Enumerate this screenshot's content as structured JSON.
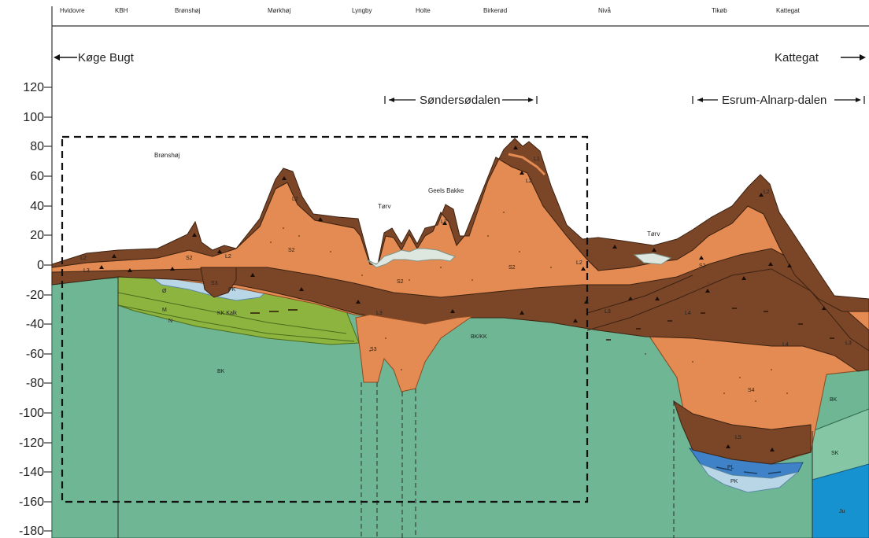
{
  "places": [
    "Hvidovre",
    "KBH",
    "Brønshøj",
    "Mørkhøj",
    "Lyngby",
    "Holte",
    "Birkerød",
    "Nivå",
    "Tikøb",
    "Kattegat"
  ],
  "direction_left": "Køge Bugt",
  "direction_right": "Kattegat",
  "valley_1": "Søndersødalen",
  "valley_2": "Esrum-Alnarp-dalen",
  "y_ticks": [
    "120",
    "100",
    "80",
    "60",
    "40",
    "20",
    "0",
    "-20",
    "-40",
    "-60",
    "-80",
    "-100",
    "-120",
    "-140",
    "-160",
    "-180"
  ],
  "annotations": {
    "bronshoj": "Brønshøj",
    "torv_1": "Tørv",
    "torv_2": "Tørv",
    "geels_bakke": "Geels Bakke"
  },
  "units": {
    "l2_a": "L2",
    "l3_a": "L3",
    "s2_a": "S2",
    "l2_b": "L2",
    "s3_a": "S3",
    "pk_a": "PK",
    "o": "Ø",
    "m": "M",
    "n": "N",
    "kk_kalk": "KK Kalk",
    "bk_a": "BK",
    "l2_c": "L2",
    "s2_b": "S2",
    "l3_b": "L3",
    "s2_c": "S2",
    "s3_b": "S3",
    "l2_d": "L2",
    "l1": "L1",
    "l2_e": "L2",
    "s2_d": "S2",
    "bk_kk": "BK/KK",
    "l2_f": "L2",
    "l3_c": "L3",
    "l4_a": "L4",
    "l4_b": "L4",
    "l3_d": "L3",
    "l2_g": "L2",
    "s2_e": "S2",
    "s4": "S4",
    "l5": "L5",
    "pl": "PL",
    "pk_b": "PK",
    "bk_b": "BK",
    "sk": "SK",
    "ju": "Ju"
  },
  "colors": {
    "bedrock_green": "#6fb694",
    "sand_orange": "#e38b52",
    "till_brown": "#7a4627",
    "limestone_green": "#8db43f",
    "clay_blue": "#b9d6e6",
    "jurassic_blue": "#1592cf",
    "sk_green": "#85c6a4",
    "peat_grey": "#dde6df"
  }
}
